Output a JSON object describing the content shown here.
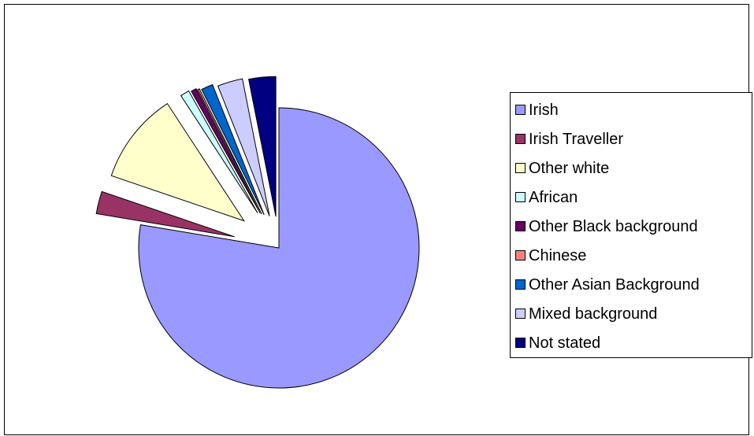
{
  "chart_data": {
    "type": "pie",
    "exploded": true,
    "legend_position": "right",
    "categories": [
      "Irish",
      "Irish Traveller",
      "Other white",
      "African",
      "Other Black background",
      "Chinese",
      "Other Asian Background",
      "Mixed background",
      "Not stated"
    ],
    "values": [
      75.0,
      2.5,
      10.2,
      1.0,
      0.6,
      0.2,
      1.3,
      2.8,
      3.0
    ],
    "colors": [
      "#9999ff",
      "#993366",
      "#ffffcc",
      "#ccffff",
      "#660066",
      "#ff8080",
      "#0066cc",
      "#ccccff",
      "#000080"
    ]
  }
}
